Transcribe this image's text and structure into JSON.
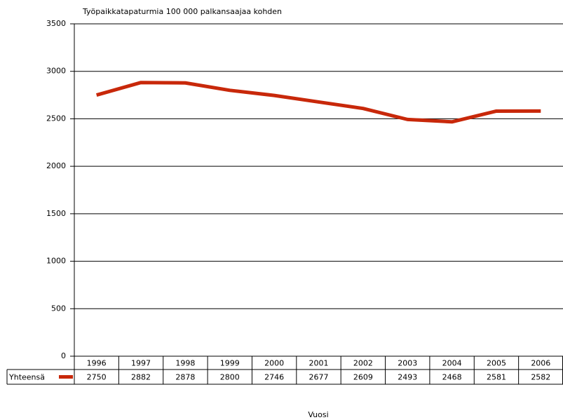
{
  "chart_data": {
    "type": "line",
    "title": "Työpaikkatapaturmia 100 000 palkansaajaa kohden",
    "xlabel": "Vuosi",
    "categories": [
      "1996",
      "1997",
      "1998",
      "1999",
      "2000",
      "2001",
      "2002",
      "2003",
      "2004",
      "2005",
      "2006"
    ],
    "series": [
      {
        "name": "Yhteensä",
        "color": "#c8280a",
        "values": [
          2750,
          2882,
          2878,
          2800,
          2746,
          2677,
          2609,
          2493,
          2468,
          2581,
          2582
        ]
      }
    ],
    "ylim": [
      0,
      3500
    ],
    "yticks": [
      0,
      500,
      1000,
      1500,
      2000,
      2500,
      3000,
      3500
    ],
    "grid": true
  }
}
